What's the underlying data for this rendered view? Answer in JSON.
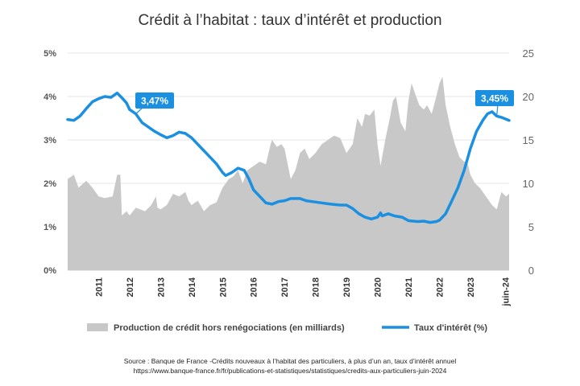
{
  "chart_data": {
    "type": "area+line",
    "title": "Crédit à l’habitat : taux d’intérêt et production",
    "x_ticks": [
      "2011",
      "2012",
      "2013",
      "2014",
      "2015",
      "2016",
      "2017",
      "2018",
      "2019",
      "2020",
      "2021",
      "2022",
      "2023",
      "juin-24"
    ],
    "y_left": {
      "ticks": [
        "0%",
        "1%",
        "2%",
        "3%",
        "4%",
        "5%"
      ],
      "range": [
        0,
        5
      ]
    },
    "y_right": {
      "ticks": [
        "0",
        "5",
        "10",
        "15",
        "20",
        "25"
      ],
      "range": [
        0,
        25
      ]
    },
    "grid": "horizontal",
    "legend_placement": "bottom",
    "series": [
      {
        "name": "Production de crédit hors renégociations (en milliards)",
        "type": "area",
        "axis": "right",
        "color": "#c8c8c8",
        "points": [
          [
            2010.0,
            10.5
          ],
          [
            2010.2,
            11.0
          ],
          [
            2010.35,
            9.5
          ],
          [
            2010.6,
            10.3
          ],
          [
            2010.8,
            9.5
          ],
          [
            2011.0,
            8.5
          ],
          [
            2011.2,
            8.3
          ],
          [
            2011.45,
            8.5
          ],
          [
            2011.6,
            11.0
          ],
          [
            2011.7,
            11.0
          ],
          [
            2011.75,
            6.3
          ],
          [
            2011.9,
            6.8
          ],
          [
            2012.0,
            6.3
          ],
          [
            2012.2,
            7.2
          ],
          [
            2012.5,
            6.8
          ],
          [
            2012.7,
            7.5
          ],
          [
            2012.85,
            8.5
          ],
          [
            2012.9,
            7.2
          ],
          [
            2013.0,
            7.0
          ],
          [
            2013.2,
            7.5
          ],
          [
            2013.4,
            8.8
          ],
          [
            2013.6,
            8.5
          ],
          [
            2013.8,
            9.0
          ],
          [
            2013.9,
            8.0
          ],
          [
            2014.0,
            7.5
          ],
          [
            2014.2,
            8.0
          ],
          [
            2014.4,
            6.8
          ],
          [
            2014.6,
            7.5
          ],
          [
            2014.8,
            7.8
          ],
          [
            2015.0,
            9.5
          ],
          [
            2015.2,
            10.5
          ],
          [
            2015.35,
            10.8
          ],
          [
            2015.5,
            11.5
          ],
          [
            2015.65,
            10.0
          ],
          [
            2015.8,
            11.5
          ],
          [
            2016.0,
            12.0
          ],
          [
            2016.2,
            12.5
          ],
          [
            2016.4,
            12.2
          ],
          [
            2016.55,
            14.5
          ],
          [
            2016.6,
            15.0
          ],
          [
            2016.75,
            14.2
          ],
          [
            2016.9,
            14.5
          ],
          [
            2017.0,
            14.0
          ],
          [
            2017.2,
            10.5
          ],
          [
            2017.35,
            11.5
          ],
          [
            2017.5,
            13.5
          ],
          [
            2017.65,
            14.0
          ],
          [
            2017.8,
            12.8
          ],
          [
            2018.0,
            13.5
          ],
          [
            2018.2,
            14.5
          ],
          [
            2018.4,
            15.0
          ],
          [
            2018.6,
            15.5
          ],
          [
            2018.8,
            15.2
          ],
          [
            2019.0,
            13.5
          ],
          [
            2019.2,
            14.5
          ],
          [
            2019.35,
            17.5
          ],
          [
            2019.5,
            16.5
          ],
          [
            2019.6,
            18.0
          ],
          [
            2019.75,
            17.8
          ],
          [
            2019.9,
            18.5
          ],
          [
            2020.0,
            14.5
          ],
          [
            2020.1,
            12.0
          ],
          [
            2020.25,
            15.0
          ],
          [
            2020.4,
            17.5
          ],
          [
            2020.5,
            19.5
          ],
          [
            2020.6,
            20.0
          ],
          [
            2020.75,
            17.0
          ],
          [
            2020.9,
            16.0
          ],
          [
            2021.0,
            19.5
          ],
          [
            2021.1,
            21.5
          ],
          [
            2021.25,
            20.0
          ],
          [
            2021.35,
            19.0
          ],
          [
            2021.5,
            18.5
          ],
          [
            2021.6,
            19.0
          ],
          [
            2021.75,
            18.0
          ],
          [
            2021.9,
            20.0
          ],
          [
            2022.0,
            21.5
          ],
          [
            2022.1,
            22.3
          ],
          [
            2022.2,
            19.0
          ],
          [
            2022.35,
            16.5
          ],
          [
            2022.5,
            14.5
          ],
          [
            2022.65,
            13.0
          ],
          [
            2022.8,
            12.5
          ],
          [
            2022.9,
            12.5
          ],
          [
            2023.0,
            11.0
          ],
          [
            2023.15,
            10.0
          ],
          [
            2023.3,
            9.5
          ],
          [
            2023.5,
            8.5
          ],
          [
            2023.7,
            7.5
          ],
          [
            2023.85,
            7.0
          ],
          [
            2024.0,
            9.0
          ],
          [
            2024.15,
            8.5
          ],
          [
            2024.25,
            8.8
          ]
        ]
      },
      {
        "name": "Taux d'intérêt (%)",
        "type": "line",
        "axis": "left",
        "color": "#1b8fe0",
        "points": [
          [
            2010.0,
            3.47
          ],
          [
            2010.2,
            3.45
          ],
          [
            2010.4,
            3.55
          ],
          [
            2010.6,
            3.72
          ],
          [
            2010.8,
            3.88
          ],
          [
            2011.0,
            3.95
          ],
          [
            2011.2,
            4.0
          ],
          [
            2011.4,
            3.98
          ],
          [
            2011.6,
            4.08
          ],
          [
            2011.75,
            3.97
          ],
          [
            2011.9,
            3.85
          ],
          [
            2012.0,
            3.7
          ],
          [
            2012.2,
            3.6
          ],
          [
            2012.4,
            3.4
          ],
          [
            2012.6,
            3.3
          ],
          [
            2012.8,
            3.2
          ],
          [
            2013.0,
            3.12
          ],
          [
            2013.2,
            3.05
          ],
          [
            2013.4,
            3.1
          ],
          [
            2013.6,
            3.18
          ],
          [
            2013.8,
            3.15
          ],
          [
            2014.0,
            3.05
          ],
          [
            2014.2,
            2.9
          ],
          [
            2014.4,
            2.75
          ],
          [
            2014.6,
            2.6
          ],
          [
            2014.8,
            2.45
          ],
          [
            2015.0,
            2.25
          ],
          [
            2015.1,
            2.18
          ],
          [
            2015.3,
            2.25
          ],
          [
            2015.5,
            2.35
          ],
          [
            2015.7,
            2.3
          ],
          [
            2015.85,
            2.1
          ],
          [
            2016.0,
            1.85
          ],
          [
            2016.2,
            1.7
          ],
          [
            2016.4,
            1.55
          ],
          [
            2016.6,
            1.52
          ],
          [
            2016.8,
            1.58
          ],
          [
            2017.0,
            1.6
          ],
          [
            2017.2,
            1.65
          ],
          [
            2017.5,
            1.65
          ],
          [
            2017.7,
            1.6
          ],
          [
            2017.9,
            1.58
          ],
          [
            2018.2,
            1.55
          ],
          [
            2018.5,
            1.52
          ],
          [
            2018.8,
            1.5
          ],
          [
            2019.0,
            1.5
          ],
          [
            2019.2,
            1.42
          ],
          [
            2019.4,
            1.3
          ],
          [
            2019.6,
            1.22
          ],
          [
            2019.8,
            1.18
          ],
          [
            2020.0,
            1.22
          ],
          [
            2020.1,
            1.32
          ],
          [
            2020.15,
            1.25
          ],
          [
            2020.35,
            1.3
          ],
          [
            2020.55,
            1.25
          ],
          [
            2020.8,
            1.22
          ],
          [
            2021.0,
            1.14
          ],
          [
            2021.3,
            1.12
          ],
          [
            2021.5,
            1.13
          ],
          [
            2021.7,
            1.1
          ],
          [
            2021.9,
            1.12
          ],
          [
            2022.0,
            1.15
          ],
          [
            2022.2,
            1.3
          ],
          [
            2022.4,
            1.6
          ],
          [
            2022.6,
            1.9
          ],
          [
            2022.8,
            2.3
          ],
          [
            2023.0,
            2.8
          ],
          [
            2023.2,
            3.2
          ],
          [
            2023.4,
            3.45
          ],
          [
            2023.55,
            3.6
          ],
          [
            2023.7,
            3.65
          ],
          [
            2023.85,
            3.55
          ],
          [
            2024.0,
            3.52
          ],
          [
            2024.25,
            3.45
          ]
        ]
      }
    ],
    "annotations": [
      {
        "text": "3,47%"
      },
      {
        "text": "3,45%"
      }
    ],
    "source_line1": "Source : Banque de France -Crédits nouveaux à l’habitat des particuliers, à plus d’un an, taux d’intérêt annuel",
    "source_line2": "https://www.banque-france.fr/fr/publications-et-statistiques/statistiques/credits-aux-particuliers-juin-2024"
  }
}
